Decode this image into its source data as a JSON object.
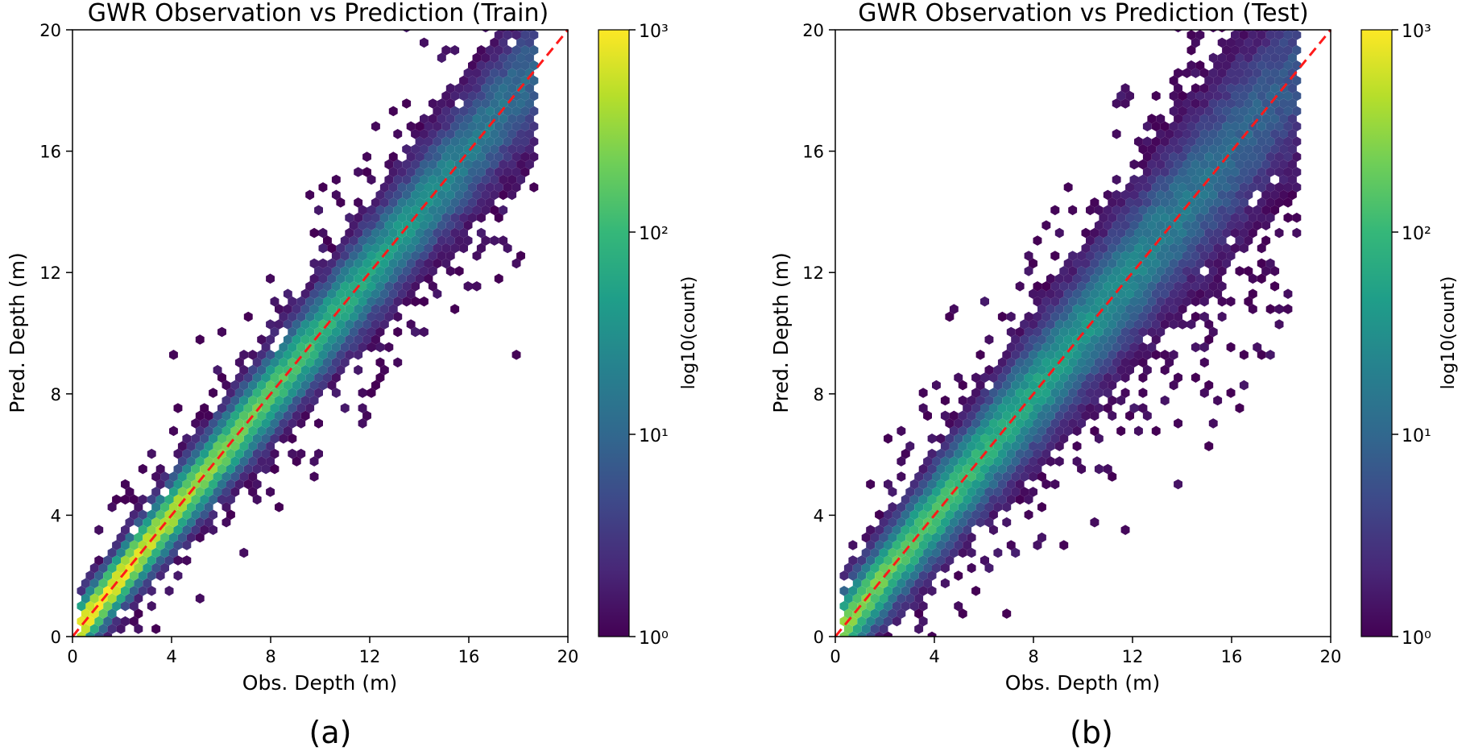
{
  "colors": {
    "identity_line": "#ff1a1a",
    "viridis": [
      "#440154",
      "#482878",
      "#3e4989",
      "#31688e",
      "#26828e",
      "#1f9e89",
      "#35b779",
      "#6ece58",
      "#b5de2b",
      "#fde725"
    ]
  },
  "chart_data": [
    {
      "type": "heatmap",
      "subtype": "hexbin",
      "title": "GWR Observation vs Prediction (Train)",
      "xlabel": "Obs. Depth (m)",
      "ylabel": "Pred. Depth (m)",
      "xlim": [
        0,
        20
      ],
      "ylim": [
        0,
        20
      ],
      "xticks": [
        "0",
        "4",
        "8",
        "12",
        "16",
        "20"
      ],
      "yticks": [
        "0",
        "4",
        "8",
        "12",
        "16",
        "20"
      ],
      "colorbar": {
        "label": "log10(count)",
        "scale": "log",
        "range": [
          1,
          1000
        ],
        "ticks": [
          "10⁰",
          "10¹",
          "10²",
          "10³"
        ]
      },
      "reference_line": {
        "from": [
          0,
          0
        ],
        "to": [
          20,
          20
        ],
        "style": "dashed"
      },
      "density": {
        "x_extent": [
          0.2,
          18.7
        ],
        "peak_log10_count": 3.0,
        "spread_m": 0.55,
        "outlier_spread_m": 1.3
      },
      "panel_label": "(a)"
    },
    {
      "type": "heatmap",
      "subtype": "hexbin",
      "title": "GWR Observation vs Prediction (Test)",
      "xlabel": "Obs. Depth (m)",
      "ylabel": "Pred. Depth (m)",
      "xlim": [
        0,
        20
      ],
      "ylim": [
        0,
        20
      ],
      "xticks": [
        "0",
        "4",
        "8",
        "12",
        "16",
        "20"
      ],
      "yticks": [
        "0",
        "4",
        "8",
        "12",
        "16",
        "20"
      ],
      "colorbar": {
        "label": "log10(count)",
        "scale": "log",
        "range": [
          1,
          1000
        ],
        "ticks": [
          "10⁰",
          "10¹",
          "10²",
          "10³"
        ]
      },
      "reference_line": {
        "from": [
          0,
          0
        ],
        "to": [
          20,
          20
        ],
        "style": "dashed"
      },
      "density": {
        "x_extent": [
          0.2,
          18.7
        ],
        "peak_log10_count": 2.4,
        "spread_m": 0.75,
        "outlier_spread_m": 1.8
      },
      "panel_label": "(b)"
    }
  ]
}
